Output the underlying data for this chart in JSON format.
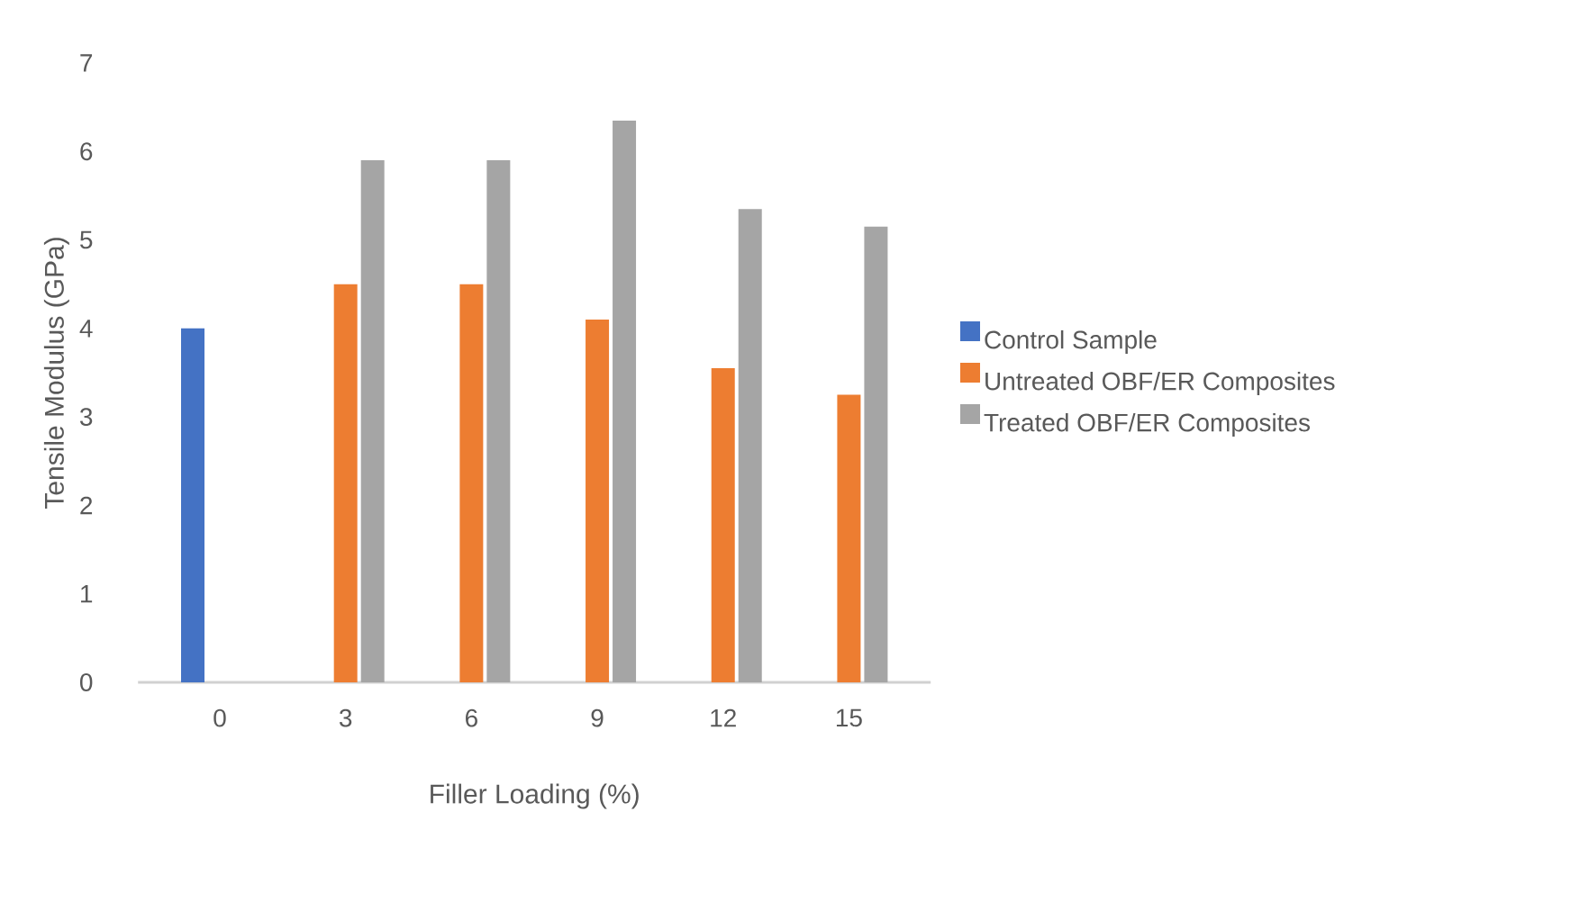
{
  "chart_data": {
    "type": "bar",
    "xlabel": "Filler Loading (%)",
    "ylabel": "Tensile Modulus (GPa)",
    "categories": [
      "0",
      "3",
      "6",
      "9",
      "12",
      "15"
    ],
    "series": [
      {
        "name": "Control Sample",
        "color": "#4472c4",
        "values": [
          4.0,
          null,
          null,
          null,
          null,
          null
        ]
      },
      {
        "name": "Untreated OBF/ER Composites",
        "color": "#ed7d31",
        "values": [
          null,
          4.5,
          4.5,
          4.1,
          3.55,
          3.25
        ]
      },
      {
        "name": "Treated OBF/ER Composites",
        "color": "#a5a5a5",
        "values": [
          null,
          5.9,
          5.9,
          6.35,
          5.35,
          5.15
        ]
      }
    ],
    "ylim": [
      0,
      7
    ],
    "yticks": [
      0,
      1,
      2,
      3,
      4,
      5,
      6,
      7
    ],
    "legend": "right",
    "grid": false
  }
}
